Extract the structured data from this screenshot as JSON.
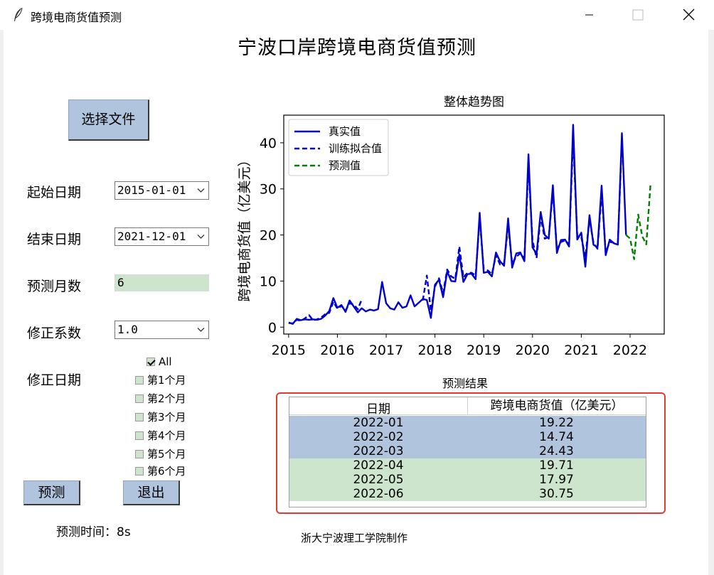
{
  "window": {
    "title": "跨境电商货值预测"
  },
  "page_title": "宁波口岸跨境电商货值预测",
  "controls": {
    "select_file_label": "选择文件",
    "start_date_label": "起始日期",
    "start_date_value": "2015-01-01",
    "end_date_label": "结束日期",
    "end_date_value": "2021-12-01",
    "predict_months_label": "预测月数",
    "predict_months_value": "6",
    "correction_factor_label": "修正系数",
    "correction_factor_value": "1.0",
    "correction_date_label": "修正日期",
    "checkboxes": [
      {
        "label": "All",
        "checked": true
      },
      {
        "label": "第1个月",
        "checked": false
      },
      {
        "label": "第2个月",
        "checked": false
      },
      {
        "label": "第3个月",
        "checked": false
      },
      {
        "label": "第4个月",
        "checked": false
      },
      {
        "label": "第5个月",
        "checked": false
      },
      {
        "label": "第6个月",
        "checked": false
      }
    ],
    "predict_button": "预测",
    "exit_button": "退出",
    "predict_time_text": "预测时间：8s"
  },
  "footer_credit": "浙大宁波理工学院制作",
  "chart_data": {
    "type": "line",
    "title": "整体趋势图",
    "xlabel": "",
    "ylabel": "跨境电商货值（亿美元）",
    "xlim": [
      2014.9,
      2022.7
    ],
    "ylim": [
      -1.5,
      46
    ],
    "xticks": [
      2015,
      2016,
      2017,
      2018,
      2019,
      2020,
      2021,
      2022
    ],
    "yticks": [
      0,
      10,
      20,
      30,
      40
    ],
    "grid": false,
    "legend": "top-left",
    "series": [
      {
        "name": "真实值",
        "color": "#0000cd",
        "style": "solid",
        "x": [
          2015.0,
          2015.083,
          2015.167,
          2015.25,
          2015.333,
          2015.417,
          2015.5,
          2015.583,
          2015.667,
          2015.75,
          2015.833,
          2015.917,
          2016.0,
          2016.083,
          2016.167,
          2016.25,
          2016.333,
          2016.417,
          2016.5,
          2016.583,
          2016.667,
          2016.75,
          2016.833,
          2016.917,
          2017.0,
          2017.083,
          2017.167,
          2017.25,
          2017.333,
          2017.417,
          2017.5,
          2017.583,
          2017.667,
          2017.75,
          2017.833,
          2017.917,
          2018.0,
          2018.083,
          2018.167,
          2018.25,
          2018.333,
          2018.417,
          2018.5,
          2018.583,
          2018.667,
          2018.75,
          2018.833,
          2018.917,
          2019.0,
          2019.083,
          2019.167,
          2019.25,
          2019.333,
          2019.417,
          2019.5,
          2019.583,
          2019.667,
          2019.75,
          2019.833,
          2019.917,
          2020.0,
          2020.083,
          2020.167,
          2020.25,
          2020.333,
          2020.417,
          2020.5,
          2020.583,
          2020.667,
          2020.75,
          2020.833,
          2020.917,
          2021.0,
          2021.083,
          2021.167,
          2021.25,
          2021.333,
          2021.417,
          2021.5,
          2021.583,
          2021.667,
          2021.75,
          2021.833,
          2021.917
        ],
        "values": [
          1.0,
          0.7,
          1.8,
          1.5,
          1.7,
          1.6,
          1.7,
          1.6,
          1.8,
          2.5,
          3.5,
          6.3,
          4.2,
          4.8,
          3.3,
          5.8,
          4.5,
          3.2,
          4.1,
          3.4,
          3.8,
          3.6,
          3.9,
          9.8,
          5.2,
          4.1,
          3.8,
          5.4,
          4.2,
          4.5,
          6.9,
          4.5,
          5.3,
          6.1,
          5.9,
          2.0,
          9.2,
          10.3,
          6.5,
          12.1,
          10.0,
          9.9,
          15.8,
          9.8,
          11.5,
          11.6,
          10.4,
          24.8,
          11.8,
          12.0,
          11.0,
          16.2,
          14.3,
          13.3,
          23.6,
          12.9,
          16.0,
          16.2,
          14.3,
          37.5,
          17.3,
          15.9,
          25.0,
          20.0,
          19.2,
          30.8,
          16.1,
          18.9,
          19.0,
          17.5,
          43.9,
          19.0,
          20.5,
          13.1,
          24.3,
          17.9,
          17.3,
          30.7,
          15.6,
          19.0,
          18.2,
          17.9,
          42.1,
          20.0
        ]
      },
      {
        "name": "训练拟合值",
        "color": "#0000cd",
        "style": "dashed",
        "segments": [
          {
            "x": [
              2015.0,
              2015.083,
              2015.167,
              2015.25,
              2015.333,
              2015.417,
              2015.5,
              2015.583,
              2015.667,
              2015.75,
              2015.833,
              2015.917,
              2016.0,
              2016.083,
              2016.167,
              2016.25,
              2016.333,
              2016.417,
              2016.5
            ],
            "values": [
              0.9,
              0.8,
              1.6,
              1.4,
              1.9,
              2.6,
              1.5,
              1.7,
              2.1,
              2.8,
              3.1,
              5.5,
              4.0,
              4.6,
              3.6,
              5.2,
              4.9,
              3.9,
              6.0
            ]
          },
          {
            "x": [
              2017.75,
              2017.833,
              2017.917,
              2018.0,
              2018.083,
              2018.167,
              2018.25,
              2018.333,
              2018.417,
              2018.5,
              2018.583,
              2018.667,
              2018.75,
              2018.833,
              2018.917,
              2019.0,
              2019.083,
              2019.167,
              2019.25,
              2019.333,
              2019.417,
              2019.5,
              2019.583,
              2019.667,
              2019.75,
              2019.833,
              2019.917,
              2020.0,
              2020.083,
              2020.167,
              2020.25,
              2020.333,
              2020.417,
              2020.5,
              2020.583,
              2020.667,
              2020.75,
              2020.833,
              2020.917,
              2021.0,
              2021.083,
              2021.167,
              2021.25,
              2021.333,
              2021.417,
              2021.5,
              2021.583,
              2021.667,
              2021.75,
              2021.833
            ],
            "values": [
              5.8,
              11.2,
              3.5,
              8.8,
              10.6,
              7.4,
              12.5,
              11.0,
              10.5,
              17.5,
              10.8,
              11.8,
              11.8,
              11.2,
              23.5,
              12.6,
              12.3,
              11.5,
              15.6,
              13.6,
              13.8,
              22.0,
              13.8,
              15.3,
              16.0,
              15.0,
              35.0,
              18.8,
              15.0,
              24.0,
              19.2,
              19.5,
              29.5,
              16.9,
              18.5,
              18.8,
              18.0,
              41.0,
              19.8,
              19.5,
              15.2,
              23.5,
              18.3,
              17.0,
              29.3,
              16.2,
              18.5,
              18.3,
              18.4,
              40.5
            ]
          }
        ]
      },
      {
        "name": "预测值",
        "color": "#008000",
        "style": "dashed",
        "x": [
          2021.917,
          2022.0,
          2022.083,
          2022.167,
          2022.25,
          2022.333,
          2022.417
        ],
        "values": [
          20.0,
          19.22,
          14.74,
          24.43,
          19.71,
          17.97,
          30.75
        ]
      }
    ]
  },
  "results": {
    "title": "预测结果",
    "col_date": "日期",
    "col_value": "跨境电商货值（亿美元）",
    "rows": [
      {
        "date": "2022-01",
        "value": "19.22"
      },
      {
        "date": "2022-02",
        "value": "14.74"
      },
      {
        "date": "2022-03",
        "value": "24.43"
      },
      {
        "date": "2022-04",
        "value": "19.71"
      },
      {
        "date": "2022-05",
        "value": "17.97"
      },
      {
        "date": "2022-06",
        "value": "30.75"
      }
    ]
  },
  "colors": {
    "row_blue": "#b0c4de",
    "row_green": "#cce5cc",
    "highlight_frame": "#e53935"
  }
}
